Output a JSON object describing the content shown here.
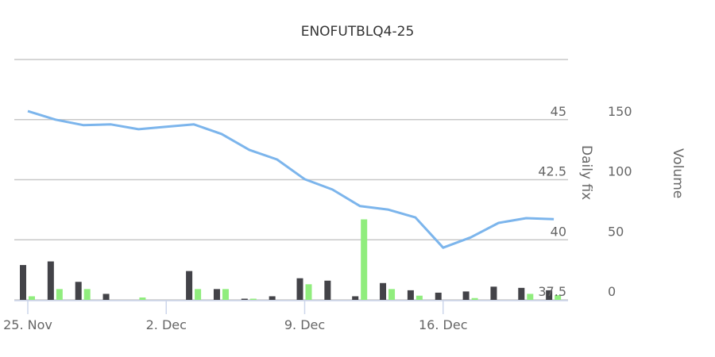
{
  "title": "ENOFUTBLQ4-25",
  "colors": {
    "line": "#7cb5ec",
    "bar_dark": "#434348",
    "bar_green": "#90ed7d",
    "grid": "#c8c8c8",
    "axis": "#ccd6eb",
    "text": "#666666"
  },
  "chart_data": {
    "type": "line+bar",
    "title": "ENOFUTBLQ4-25",
    "xlabel": "",
    "x_tick_labels": [
      "25. Nov",
      "2. Dec",
      "9. Dec",
      "16. Dec"
    ],
    "categories": [
      "2019-11-25",
      "2019-11-26",
      "2019-11-27",
      "2019-11-28",
      "2019-11-29",
      "2019-12-02",
      "2019-12-03",
      "2019-12-04",
      "2019-12-05",
      "2019-12-06",
      "2019-12-09",
      "2019-12-10",
      "2019-12-11",
      "2019-12-12",
      "2019-12-13",
      "2019-12-16",
      "2019-12-17",
      "2019-12-18",
      "2019-12-19",
      "2019-12-20"
    ],
    "y_axes": [
      {
        "title": "Daily fix",
        "ticks": [
          37.5,
          40,
          42.5,
          45
        ],
        "range": [
          37.5,
          47.5
        ],
        "position": "right"
      },
      {
        "title": "Volume",
        "ticks": [
          0,
          50,
          100,
          150
        ],
        "range": [
          0,
          200
        ],
        "position": "right"
      }
    ],
    "grid": true,
    "legend": "none",
    "series": [
      {
        "name": "Daily fix",
        "type": "line",
        "axis": 0,
        "values": [
          45.35,
          45.0,
          44.77,
          44.8,
          44.6,
          44.7,
          44.8,
          44.4,
          43.74,
          43.34,
          42.52,
          42.09,
          41.4,
          41.26,
          40.93,
          39.67,
          40.1,
          40.7,
          40.9,
          40.86
        ]
      },
      {
        "name": "Volume (dark)",
        "type": "bar",
        "axis": 1,
        "values": [
          29,
          32,
          15,
          5,
          0,
          0,
          24,
          9,
          1,
          3,
          18,
          16,
          3,
          14,
          8,
          6,
          7,
          11,
          10,
          8
        ]
      },
      {
        "name": "Volume (green)",
        "type": "bar",
        "axis": 1,
        "values": [
          3,
          9,
          9,
          0,
          2,
          0,
          9,
          9,
          1,
          0,
          13,
          0,
          67,
          9,
          3.5,
          0,
          1.5,
          0,
          5,
          4
        ]
      }
    ]
  }
}
